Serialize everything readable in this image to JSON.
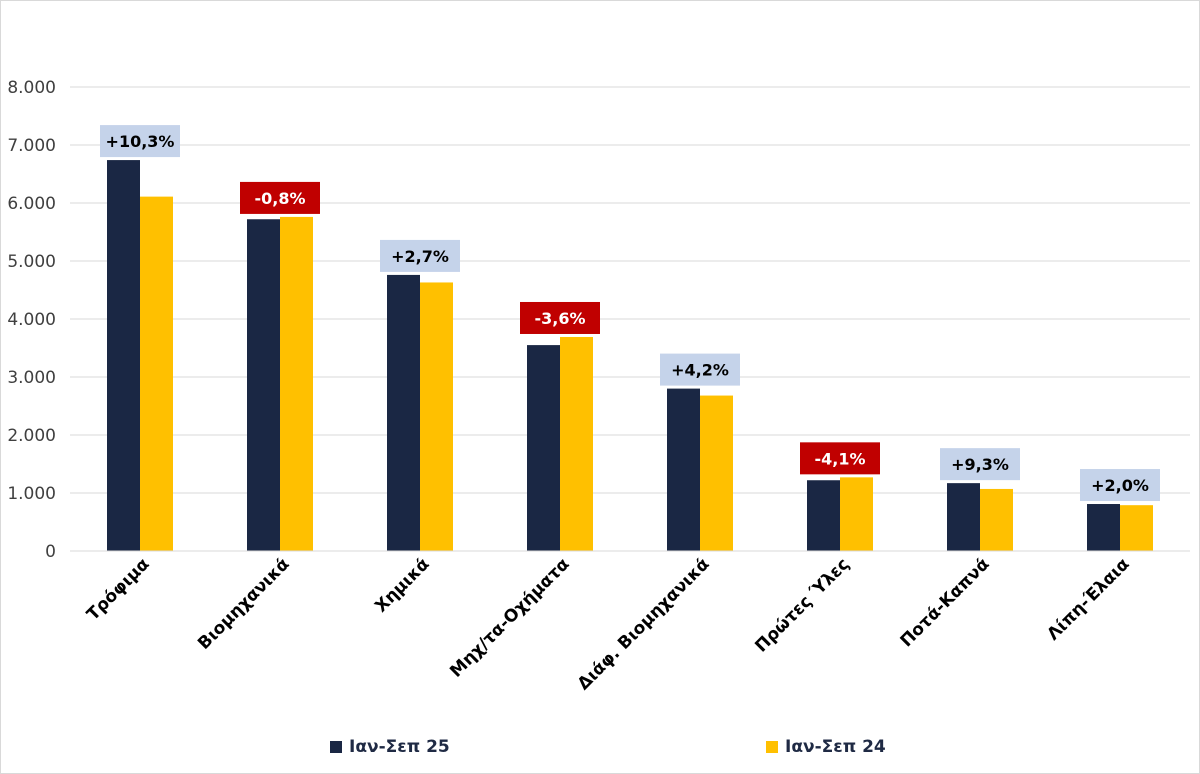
{
  "chart_data": {
    "type": "bar",
    "categories": [
      "Τρόφιμα",
      "Βιομηχανικά",
      "Χημικά",
      "Μηχ/τα-Οχήματα",
      "Διάφ. Βιομηχανικά",
      "Πρώτες Ύλες",
      "Ποτά-Καπνά",
      "Λίπη-Έλαια"
    ],
    "series": [
      {
        "name": "Ιαν-Σεπ 25",
        "color": "#1a2744",
        "values": [
          6740,
          5720,
          4760,
          3550,
          2800,
          1220,
          1170,
          810
        ]
      },
      {
        "name": "Ιαν-Σεπ 24",
        "color": "#ffc000",
        "values": [
          6110,
          5760,
          4630,
          3690,
          2680,
          1270,
          1070,
          790
        ]
      }
    ],
    "change_labels": [
      "+10,3%",
      "-0,8%",
      "+2,7%",
      "-3,6%",
      "+4,2%",
      "-4,1%",
      "+9,3%",
      "+2,0%"
    ],
    "change_colors": {
      "positive_bg": "#c5d3ea",
      "positive_text": "#000000",
      "negative_bg": "#c00000",
      "negative_text": "#ffffff"
    },
    "yticks": [
      "0",
      "1.000",
      "2.000",
      "3.000",
      "4.000",
      "5.000",
      "6.000",
      "7.000",
      "8.000"
    ],
    "ylim": [
      0,
      8000
    ],
    "grid": true,
    "legend_position": "bottom"
  }
}
